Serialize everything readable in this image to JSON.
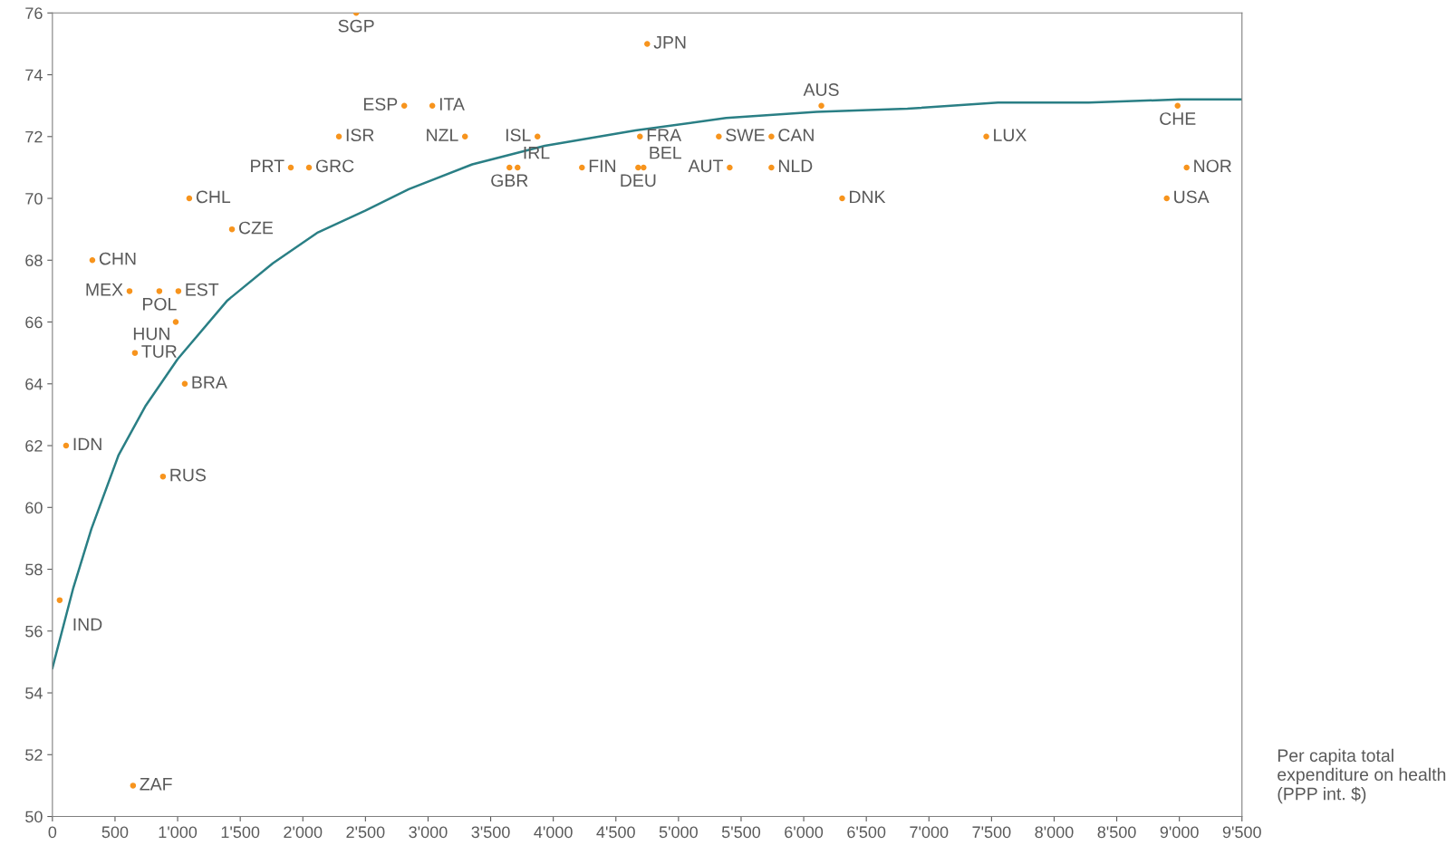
{
  "chart_data": {
    "type": "scatter",
    "xlabel": "Per capita total expenditure on health (PPP int. $)",
    "xlim": [
      0,
      9500
    ],
    "ylim": [
      50,
      76
    ],
    "xticks": [
      0,
      500,
      {
        "value": 1000,
        "label": "1'000"
      },
      {
        "value": 1500,
        "label": "1'500"
      },
      {
        "value": 2000,
        "label": "2'000"
      },
      {
        "value": 2500,
        "label": "2'500"
      },
      {
        "value": 3000,
        "label": "3'000"
      },
      {
        "value": 3500,
        "label": "3'500"
      },
      {
        "value": 4000,
        "label": "4'000"
      },
      {
        "value": 4500,
        "label": "4'500"
      },
      {
        "value": 5000,
        "label": "5'000"
      },
      {
        "value": 5500,
        "label": "5'500"
      },
      {
        "value": 6000,
        "label": "6'000"
      },
      {
        "value": 6500,
        "label": "6'500"
      },
      {
        "value": 7000,
        "label": "7'000"
      },
      {
        "value": 7500,
        "label": "7'500"
      },
      {
        "value": 8000,
        "label": "8'000"
      },
      {
        "value": 8500,
        "label": "8'500"
      },
      {
        "value": 9000,
        "label": "9'000"
      },
      {
        "value": 9500,
        "label": "9'500"
      }
    ],
    "yticks": [
      50,
      52,
      54,
      56,
      58,
      60,
      62,
      64,
      66,
      68,
      70,
      72,
      74,
      76
    ],
    "grid": false,
    "legend": false,
    "series": [
      {
        "color": "#f7941d",
        "marker": "circle",
        "x": [
          2426,
          4750,
          2810,
          3034,
          3874,
          3295,
          2288,
          1904,
          2049,
          3650,
          3715,
          4229,
          4692,
          5322,
          4678,
          4721,
          5409,
          5742,
          5742,
          6141,
          6307,
          7458,
          8986,
          9058,
          8899,
          1093,
          1434,
          319,
          616,
          854,
          1006,
          985,
          659,
          1057,
          109,
          883,
          58,
          644
        ],
        "values": [
          76,
          75,
          73,
          73,
          72,
          72,
          72,
          71,
          71,
          71,
          71,
          71,
          72,
          72,
          71,
          71,
          71,
          72,
          71,
          73,
          70,
          72,
          73,
          71,
          70,
          70,
          69,
          68,
          67,
          67,
          67,
          66,
          65,
          64,
          62,
          61,
          57,
          51
        ]
      },
      {
        "type": "line",
        "color": "#2a7f85",
        "marker": "none",
        "line_style": "solid",
        "x": [
          0,
          167,
          311,
          529,
          746,
          1000,
          1398,
          1760,
          2121,
          2498,
          2846,
          3353,
          3932,
          4656,
          5380,
          6104,
          6828,
          7552,
          8276,
          9000,
          9500
        ],
        "values": [
          54.8,
          57.4,
          59.3,
          61.7,
          63.3,
          64.8,
          66.7,
          67.9,
          68.9,
          69.6,
          70.3,
          71.1,
          71.7,
          72.2,
          72.6,
          72.8,
          72.9,
          73.1,
          73.1,
          73.2,
          73.2
        ]
      }
    ],
    "annotations": [
      {
        "text": "SGP",
        "x": 2426,
        "y": 76
      },
      {
        "text": "JPN",
        "x": 4750,
        "y": 75
      },
      {
        "text": "ESP",
        "x": 2810,
        "y": 73
      },
      {
        "text": "ITA",
        "x": 3034,
        "y": 73
      },
      {
        "text": "ISL",
        "x": 3874,
        "y": 72
      },
      {
        "text": "NZL",
        "x": 3295,
        "y": 72
      },
      {
        "text": "ISR",
        "x": 2288,
        "y": 72
      },
      {
        "text": "PRT",
        "x": 1904,
        "y": 71
      },
      {
        "text": "GRC",
        "x": 2049,
        "y": 71
      },
      {
        "text": "GBR",
        "x": 3650,
        "y": 71
      },
      {
        "text": "IRL",
        "x": 3715,
        "y": 71
      },
      {
        "text": "FIN",
        "x": 4229,
        "y": 71
      },
      {
        "text": "FRA",
        "x": 4692,
        "y": 72
      },
      {
        "text": "SWE",
        "x": 5322,
        "y": 72
      },
      {
        "text": "DEU",
        "x": 4678,
        "y": 71
      },
      {
        "text": "BEL",
        "x": 4721,
        "y": 71
      },
      {
        "text": "AUT",
        "x": 5409,
        "y": 71
      },
      {
        "text": "CAN",
        "x": 5742,
        "y": 72
      },
      {
        "text": "NLD",
        "x": 5742,
        "y": 71
      },
      {
        "text": "AUS",
        "x": 6141,
        "y": 73
      },
      {
        "text": "DNK",
        "x": 6307,
        "y": 70
      },
      {
        "text": "LUX",
        "x": 7458,
        "y": 72
      },
      {
        "text": "CHE",
        "x": 8986,
        "y": 73
      },
      {
        "text": "NOR",
        "x": 9058,
        "y": 71
      },
      {
        "text": "USA",
        "x": 8899,
        "y": 70
      },
      {
        "text": "CHL",
        "x": 1093,
        "y": 70
      },
      {
        "text": "CZE",
        "x": 1434,
        "y": 69
      },
      {
        "text": "CHN",
        "x": 319,
        "y": 68
      },
      {
        "text": "MEX",
        "x": 616,
        "y": 67
      },
      {
        "text": "POL",
        "x": 854,
        "y": 67
      },
      {
        "text": "EST",
        "x": 1006,
        "y": 67
      },
      {
        "text": "HUN",
        "x": 985,
        "y": 66
      },
      {
        "text": "TUR",
        "x": 659,
        "y": 65
      },
      {
        "text": "BRA",
        "x": 1057,
        "y": 64
      },
      {
        "text": "IDN",
        "x": 109,
        "y": 62
      },
      {
        "text": "RUS",
        "x": 883,
        "y": 61
      },
      {
        "text": "IND",
        "x": 58,
        "y": 57
      },
      {
        "text": "ZAF",
        "x": 644,
        "y": 51
      }
    ]
  }
}
